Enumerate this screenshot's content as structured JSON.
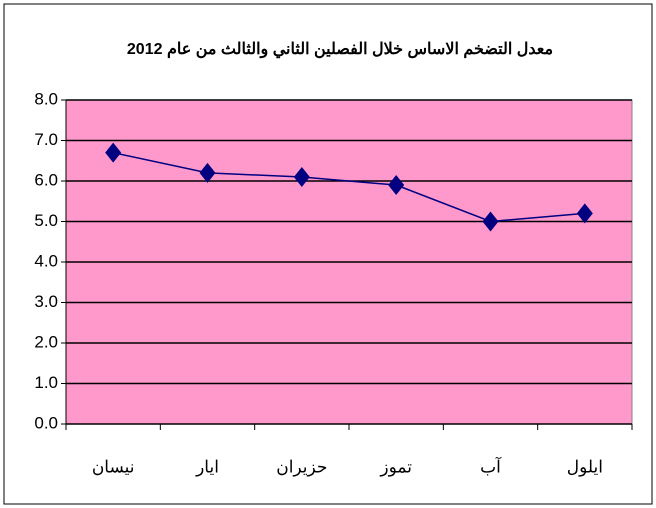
{
  "chart_data": {
    "type": "line",
    "title": "معدل التضخم الاساس خلال الفصلين الثاني والثالث من عام 2012",
    "categories": [
      "نيسان",
      "ايار",
      "حزيران",
      "تموز",
      "آب",
      "ايلول"
    ],
    "series": [
      {
        "name": "معدل التضخم الاساس",
        "color": "#000080",
        "values": [
          6.7,
          6.2,
          6.1,
          5.9,
          5.0,
          5.2
        ]
      }
    ],
    "ylim": [
      0,
      8
    ],
    "yticks": [
      {
        "value": 0,
        "label": "0.0"
      },
      {
        "value": 1,
        "label": "1.0"
      },
      {
        "value": 2,
        "label": "2.0"
      },
      {
        "value": 3,
        "label": "3.0"
      },
      {
        "value": 4,
        "label": "4.0"
      },
      {
        "value": 5,
        "label": "5.0"
      },
      {
        "value": 6,
        "label": "6.0"
      },
      {
        "value": 7,
        "label": "7.0"
      },
      {
        "value": 8,
        "label": "8.0"
      }
    ],
    "grid": true,
    "plot_background": "#ff99cc"
  }
}
